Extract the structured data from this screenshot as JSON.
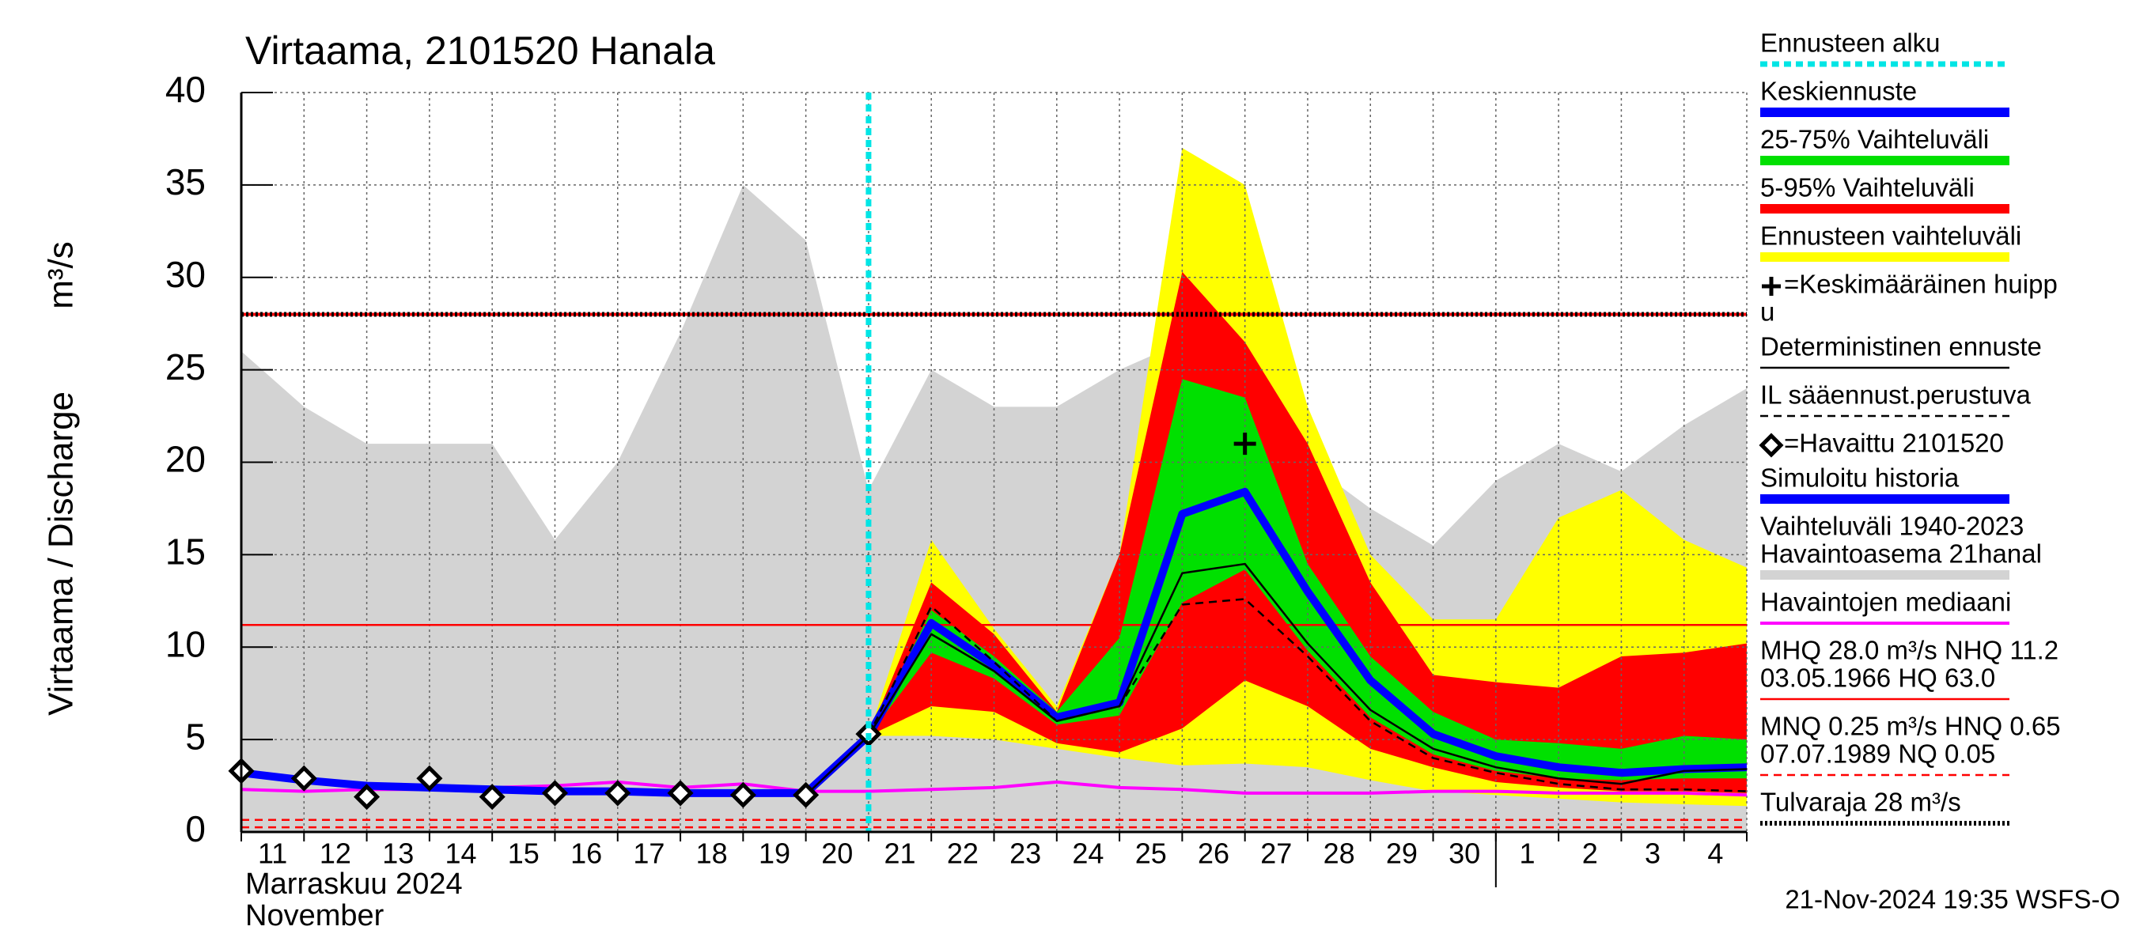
{
  "chart_data": {
    "type": "hydrograph",
    "title": "Virtaama, 2101520 Hanala",
    "y_label": "Virtaama / Discharge",
    "y_unit": "m³/s",
    "x_month_labels": [
      "Marraskuu 2024",
      "November"
    ],
    "footer": "21-Nov-2024 19:35 WSFS-O",
    "categories": [
      "11",
      "12",
      "13",
      "14",
      "15",
      "16",
      "17",
      "18",
      "19",
      "20",
      "21",
      "22",
      "23",
      "24",
      "25",
      "26",
      "27",
      "28",
      "29",
      "30",
      "1",
      "2",
      "3",
      "4",
      null
    ],
    "month_break_index": 20,
    "ylim": [
      0,
      40
    ],
    "yticks": [
      0,
      5,
      10,
      15,
      20,
      25,
      30,
      35,
      40
    ],
    "grid": true,
    "series": [
      {
        "kind": "band",
        "color": "#d3d3d3",
        "high": [
          26,
          23,
          21,
          21,
          21,
          15.8,
          20,
          27,
          35,
          32,
          18.5,
          25,
          23,
          23,
          25,
          26.5,
          26,
          20,
          17.5,
          15.5,
          19,
          21,
          19.5,
          22,
          24
        ],
        "low": [
          0,
          0,
          0,
          0,
          0,
          0,
          0,
          0,
          0,
          0,
          0,
          0,
          0,
          0,
          0,
          0,
          0,
          0,
          0,
          0,
          0,
          0,
          0,
          0,
          0
        ]
      },
      {
        "kind": "band",
        "color": "#ffff00",
        "high": [
          null,
          null,
          null,
          null,
          null,
          null,
          null,
          null,
          null,
          null,
          5.2,
          15.8,
          11,
          6.8,
          15,
          37,
          35,
          23,
          15,
          11.5,
          11.5,
          17,
          18.5,
          15.8,
          14.3
        ],
        "low": [
          null,
          null,
          null,
          null,
          null,
          null,
          null,
          null,
          null,
          null,
          5.2,
          5.2,
          5.0,
          4.5,
          4,
          3.6,
          3.7,
          3.5,
          2.8,
          2.2,
          2.0,
          1.8,
          1.6,
          1.5,
          1.4
        ]
      },
      {
        "kind": "band",
        "color": "#ff0000",
        "high": [
          null,
          null,
          null,
          null,
          null,
          null,
          null,
          null,
          null,
          null,
          5.2,
          13.5,
          10.7,
          6.5,
          15,
          30.3,
          26.5,
          21,
          13.5,
          8.5,
          8.1,
          7.8,
          9.5,
          9.7,
          10.2
        ],
        "low": [
          null,
          null,
          null,
          null,
          null,
          null,
          null,
          null,
          null,
          null,
          5.2,
          6.8,
          6.5,
          4.8,
          4.3,
          5.6,
          8.2,
          6.8,
          4.5,
          3.5,
          2.7,
          2.4,
          2.2,
          2.2,
          2.1
        ]
      },
      {
        "kind": "band",
        "color": "#00e000",
        "high": [
          null,
          null,
          null,
          null,
          null,
          null,
          null,
          null,
          null,
          null,
          5.2,
          12,
          9.5,
          6.5,
          10.5,
          24.5,
          23.5,
          14.5,
          9.5,
          6.5,
          5,
          4.8,
          4.5,
          5.2,
          5.0
        ],
        "low": [
          null,
          null,
          null,
          null,
          null,
          null,
          null,
          null,
          null,
          null,
          5.2,
          9.7,
          8.3,
          5.8,
          6.3,
          12.4,
          14.2,
          9.8,
          6.2,
          4.2,
          3.3,
          2.9,
          2.8,
          2.9,
          2.9
        ]
      },
      {
        "kind": "line",
        "color": "#ff00ff",
        "style": "medium",
        "values": [
          2.3,
          2.2,
          2.3,
          2.3,
          2.4,
          2.5,
          2.7,
          2.4,
          2.6,
          2.2,
          2.2,
          2.3,
          2.4,
          2.7,
          2.4,
          2.3,
          2.1,
          2.1,
          2.1,
          2.2,
          2.2,
          2.1,
          2.1,
          2.1,
          2.0
        ]
      },
      {
        "kind": "line",
        "color": "#0000ff",
        "style": "thick",
        "values": [
          3.2,
          2.8,
          2.5,
          2.4,
          2.3,
          2.2,
          2.2,
          2.1,
          2.1,
          2.1,
          null,
          null,
          null,
          null,
          null,
          null,
          null,
          null,
          null,
          null,
          null,
          null,
          null,
          null,
          null
        ]
      },
      {
        "kind": "line",
        "color": "#0000ff",
        "style": "thick",
        "values": [
          null,
          null,
          null,
          null,
          null,
          null,
          null,
          null,
          null,
          2.1,
          5.2,
          11.3,
          9.0,
          6.2,
          7.0,
          17.2,
          18.4,
          13,
          8.2,
          5.3,
          4.1,
          3.5,
          3.2,
          3.4,
          3.5
        ]
      },
      {
        "kind": "line",
        "color": "#000000",
        "style": "thin",
        "values": [
          null,
          null,
          null,
          null,
          null,
          null,
          null,
          null,
          null,
          2.0,
          5.2,
          10.7,
          8.7,
          6.0,
          6.8,
          14.0,
          14.5,
          10.2,
          6.6,
          4.5,
          3.5,
          2.9,
          2.6,
          3.3,
          3.4
        ]
      },
      {
        "kind": "line",
        "color": "#000000",
        "style": "dashed",
        "values": [
          null,
          null,
          null,
          null,
          null,
          null,
          null,
          null,
          null,
          null,
          5.2,
          12.2,
          9.2,
          6.0,
          6.8,
          12.3,
          12.6,
          9.5,
          6.0,
          4.0,
          3.2,
          2.6,
          2.3,
          2.3,
          2.2
        ]
      },
      {
        "kind": "points",
        "color": "#000000",
        "marker": "diamond",
        "values": [
          3.3,
          2.9,
          1.9,
          2.9,
          1.9,
          2.1,
          2.1,
          2.1,
          2.0,
          2.0,
          5.3,
          null,
          null,
          null,
          null,
          null,
          null,
          null,
          null,
          null,
          null,
          null,
          null,
          null,
          null
        ]
      },
      {
        "kind": "points",
        "color": "#000000",
        "marker": "plus",
        "values": [
          null,
          null,
          null,
          null,
          null,
          null,
          null,
          null,
          null,
          null,
          null,
          null,
          null,
          null,
          null,
          null,
          21.0,
          null,
          null,
          null,
          null,
          null,
          null,
          null,
          null
        ]
      }
    ],
    "hlines": [
      {
        "value": 11.2,
        "color": "#ff0000",
        "style": "thin"
      },
      {
        "value": 0.65,
        "color": "#ff0000",
        "style": "dashed"
      },
      {
        "value": 0.25,
        "color": "#ff0000",
        "style": "dashed"
      },
      {
        "value": 28.0,
        "color": "#ff0000",
        "style": "medium"
      },
      {
        "value": 28,
        "color": "#000000",
        "style": "dotted"
      }
    ],
    "forecast_start_color": "#00e5e5",
    "legend": [
      {
        "label": [
          "Ennusteen alku"
        ],
        "color": "#00e5e5",
        "style": "cyan-dash"
      },
      {
        "label": [
          "Keskiennuste"
        ],
        "color": "#0000ff",
        "style": "band"
      },
      {
        "label": [
          "25-75% Vaihteluväli"
        ],
        "color": "#00e000",
        "style": "band"
      },
      {
        "label": [
          "5-95% Vaihteluväli"
        ],
        "color": "#ff0000",
        "style": "band"
      },
      {
        "label": [
          "Ennusteen vaihteluväli"
        ],
        "color": "#ffff00",
        "style": "band"
      },
      {
        "label": [
          "=Keskimääräinen huipp",
          "u"
        ],
        "color": "#000000",
        "marker": "plus"
      },
      {
        "label": [
          "Deterministinen ennuste"
        ],
        "color": "#000000",
        "style": "thin"
      },
      {
        "label": [
          "IL sääennust.perustuva"
        ],
        "color": "#000000",
        "style": "dashed"
      },
      {
        "label": [
          "=Havaittu 2101520"
        ],
        "color": "#000000",
        "marker": "diamond"
      },
      {
        "label": [
          "Simuloitu historia"
        ],
        "color": "#0000ff",
        "style": "band"
      },
      {
        "label": [
          "Vaihteluväli 1940-2023",
          " Havaintoasema 21hanal"
        ],
        "color": "#d3d3d3",
        "style": "band"
      },
      {
        "label": [
          "Havaintojen mediaani"
        ],
        "color": "#ff00ff",
        "style": "medium"
      },
      {
        "label": [
          "MHQ 28.0 m³/s NHQ 11.2",
          "03.05.1966 HQ 63.0"
        ],
        "color": "#ff0000",
        "style": "thin"
      },
      {
        "label": [
          "MNQ 0.25 m³/s HNQ 0.65",
          "07.07.1989 NQ 0.05"
        ],
        "color": "#ff0000",
        "style": "dashed"
      },
      {
        "label": [
          "Tulvaraja 28 m³/s"
        ],
        "color": "#000000",
        "style": "dotted"
      }
    ]
  }
}
